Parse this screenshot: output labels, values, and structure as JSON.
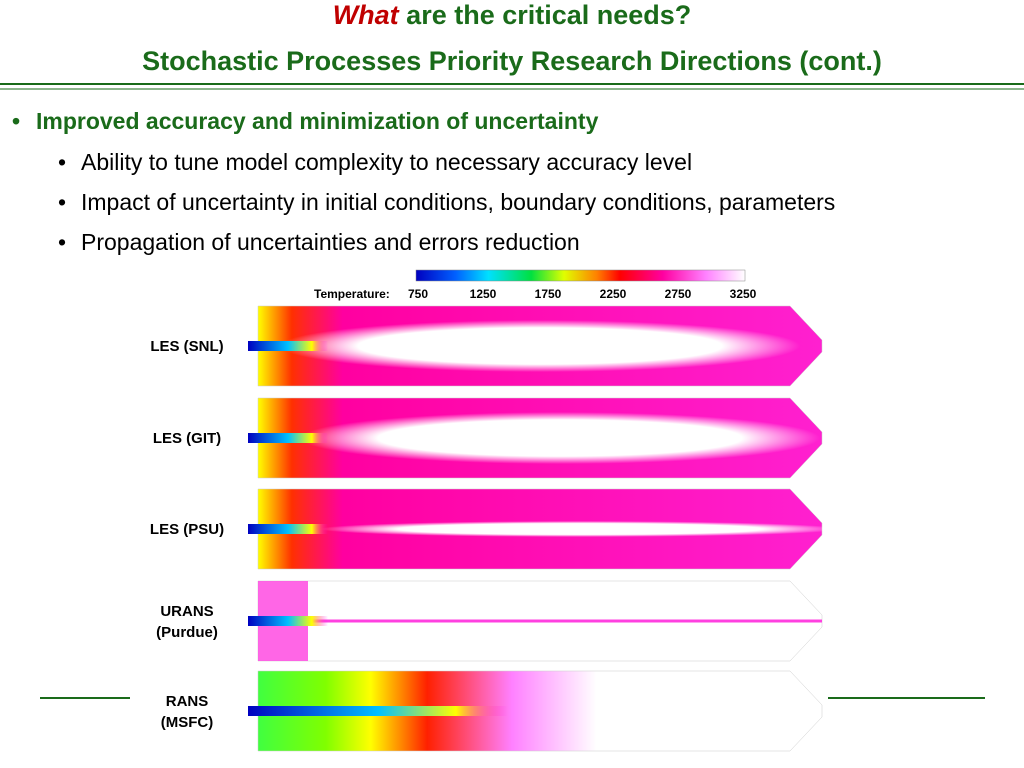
{
  "header": {
    "title_emphasis": "What",
    "title_rest": " are the critical needs?",
    "subtitle": "Stochastic Processes Priority Research Directions (cont.)"
  },
  "bullets": {
    "main": "Improved accuracy and minimization of uncertainty",
    "sub": [
      "Ability to tune model complexity to necessary accuracy level",
      "Impact of uncertainty in initial conditions, boundary conditions, parameters",
      "Propagation of uncertainties and errors reduction"
    ]
  },
  "figure": {
    "colorbar_label": "Temperature:",
    "colorbar_ticks": [
      750,
      1250,
      1750,
      2250,
      2750,
      3250
    ],
    "panels": [
      [
        "LES (SNL)"
      ],
      [
        "LES (GIT)"
      ],
      [
        "LES (PSU)"
      ],
      [
        "URANS",
        "(Purdue)"
      ],
      [
        "RANS",
        "(MSFC)"
      ]
    ]
  }
}
